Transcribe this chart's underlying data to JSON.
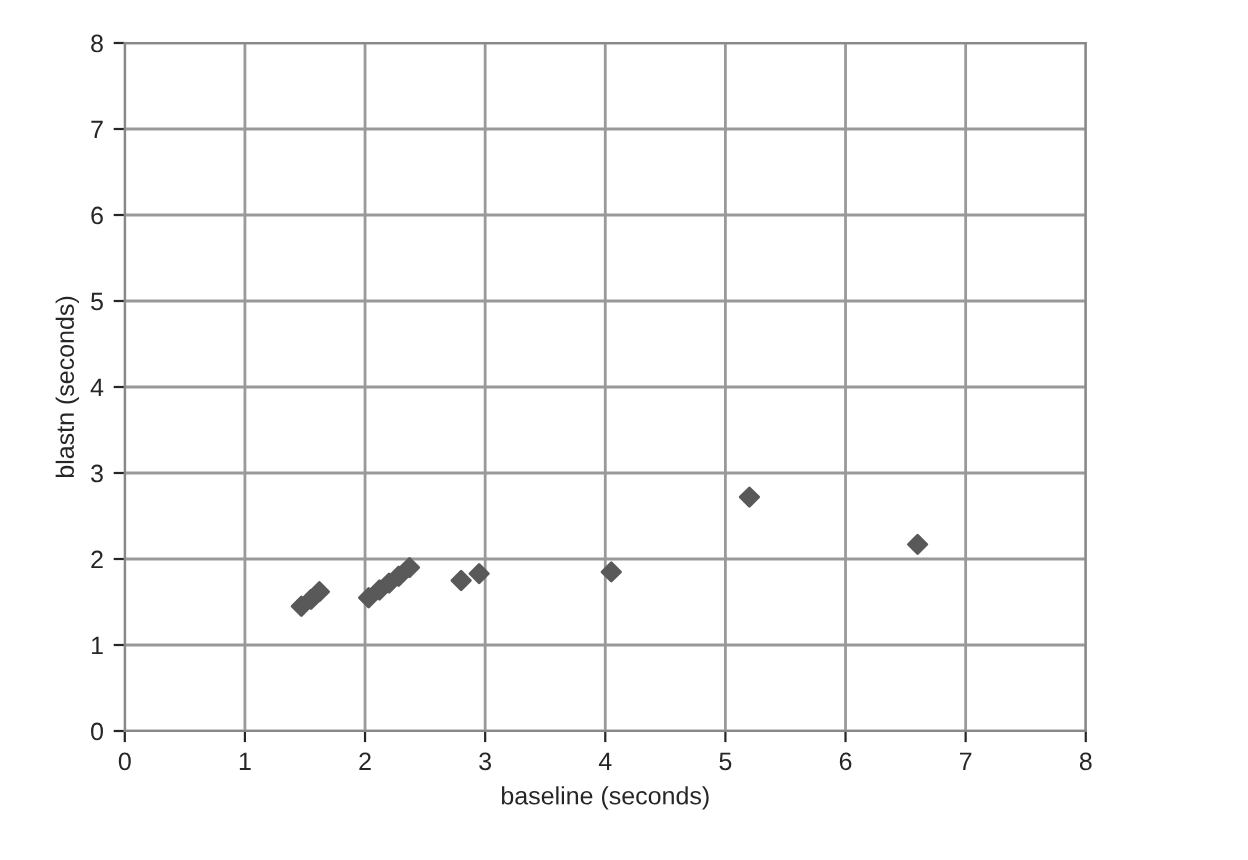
{
  "chart_data": {
    "type": "scatter",
    "xlabel": "baseline (seconds)",
    "ylabel": "blastn (seconds)",
    "xlim": [
      0,
      8
    ],
    "ylim": [
      0,
      8
    ],
    "xticks": [
      0,
      1,
      2,
      3,
      4,
      5,
      6,
      7,
      8
    ],
    "yticks": [
      0,
      1,
      2,
      3,
      4,
      5,
      6,
      7,
      8
    ],
    "grid": true,
    "marker": "diamond",
    "series": [
      {
        "color": "#595959",
        "x": [
          1.47,
          1.55,
          1.62,
          2.03,
          2.12,
          2.2,
          2.28,
          2.37,
          2.8,
          2.95,
          4.05,
          5.2,
          6.6
        ],
        "values": [
          1.45,
          1.53,
          1.62,
          1.55,
          1.64,
          1.72,
          1.8,
          1.9,
          1.75,
          1.83,
          1.85,
          2.72,
          2.17
        ]
      }
    ]
  }
}
